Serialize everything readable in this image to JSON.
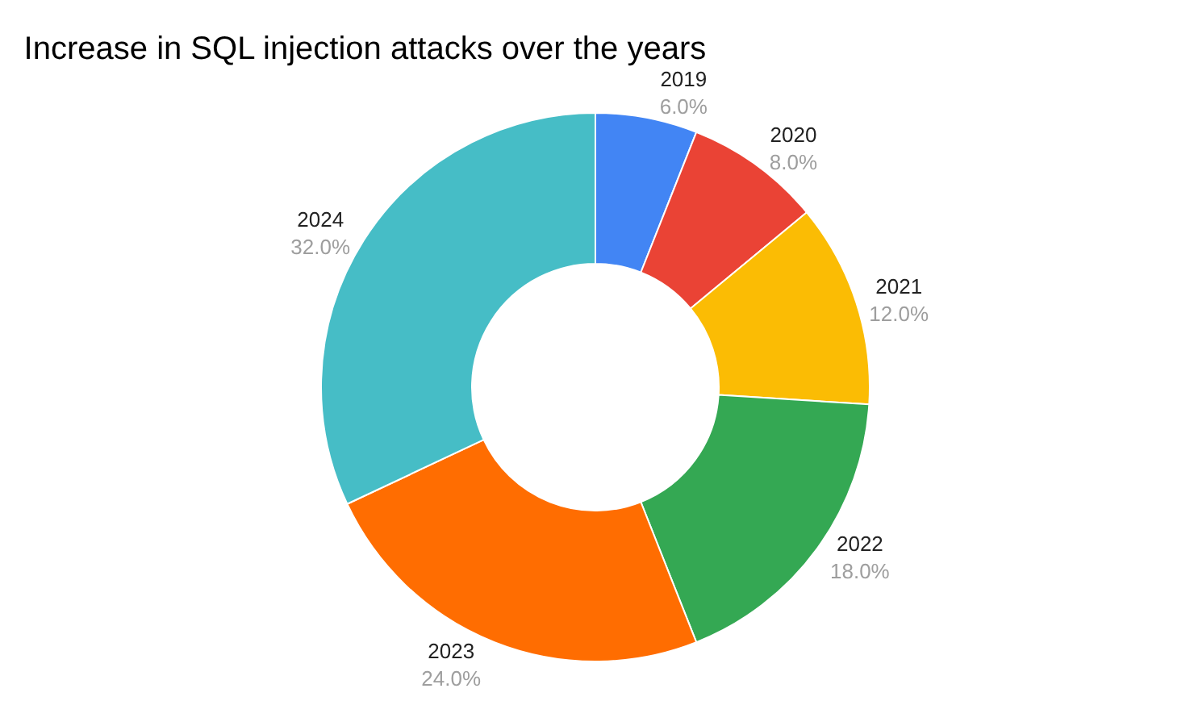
{
  "chart_data": {
    "type": "donut",
    "title": "Increase in SQL injection attacks over the years",
    "categories": [
      "2019",
      "2020",
      "2021",
      "2022",
      "2023",
      "2024"
    ],
    "values": [
      6,
      8,
      12,
      18,
      24,
      32
    ],
    "value_labels": [
      "6.0%",
      "8.0%",
      "12.0%",
      "18.0%",
      "24.0%",
      "32.0%"
    ],
    "colors": [
      "#4285f4",
      "#ea4335",
      "#fbbc04",
      "#34a853",
      "#ff6d01",
      "#46bdc6"
    ],
    "legend": false
  }
}
